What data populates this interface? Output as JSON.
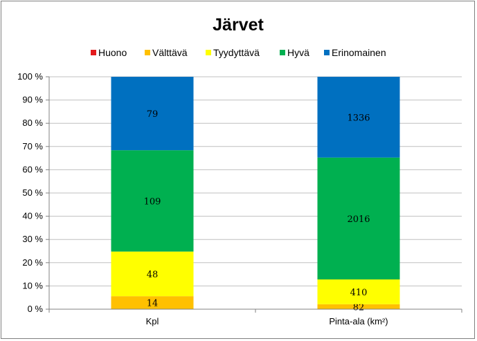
{
  "chart_data": {
    "type": "bar",
    "stacked": true,
    "normalized": true,
    "title": "Järvet",
    "categories": [
      "Kpl",
      "Pinta-ala (km²)"
    ],
    "series": [
      {
        "name": "Huono",
        "color": "#e31a1c",
        "values": [
          0,
          0
        ]
      },
      {
        "name": "Välttävä",
        "color": "#ffc000",
        "values": [
          14,
          82
        ]
      },
      {
        "name": "Tyydyttävä",
        "color": "#ffff00",
        "values": [
          48,
          410
        ]
      },
      {
        "name": "Hyvä",
        "color": "#00b050",
        "values": [
          109,
          2016
        ]
      },
      {
        "name": "Erinomainen",
        "color": "#0070c0",
        "values": [
          79,
          1336
        ]
      }
    ],
    "y_ticks": [
      "0 %",
      "10 %",
      "20 %",
      "30 %",
      "40 %",
      "50 %",
      "60 %",
      "70 %",
      "80 %",
      "90 %",
      "100 %"
    ],
    "ylim": [
      0,
      100
    ],
    "grid": true,
    "legend_position": "top"
  }
}
